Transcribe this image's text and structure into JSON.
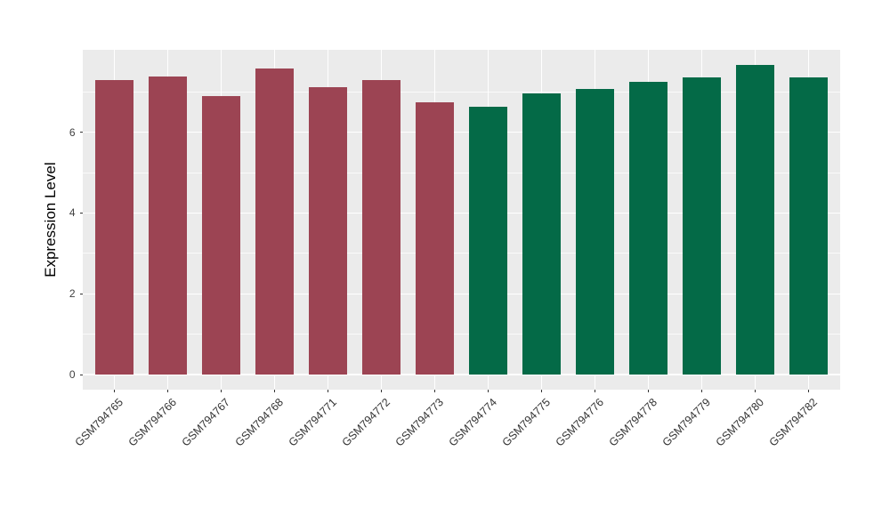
{
  "chart_data": {
    "type": "bar",
    "title": "",
    "ylabel": "Expression Level",
    "xlabel": "",
    "categories": [
      "GSM794765",
      "GSM794766",
      "GSM794767",
      "GSM794768",
      "GSM794771",
      "GSM794772",
      "GSM794773",
      "GSM794774",
      "GSM794775",
      "GSM794776",
      "GSM794778",
      "GSM794779",
      "GSM794780",
      "GSM794782"
    ],
    "values": [
      7.28,
      7.38,
      6.9,
      7.58,
      7.11,
      7.28,
      6.73,
      6.63,
      6.95,
      7.06,
      7.24,
      7.36,
      7.67,
      7.36
    ],
    "bar_colors": [
      "#9C4453",
      "#9C4453",
      "#9C4453",
      "#9C4453",
      "#9C4453",
      "#9C4453",
      "#9C4453",
      "#046A47",
      "#046A47",
      "#046A47",
      "#046A47",
      "#046A47",
      "#046A47",
      "#046A47"
    ],
    "y_ticks": [
      0,
      2,
      4,
      6
    ],
    "y_minor": [
      1,
      3,
      5,
      7
    ],
    "ylim": [
      -0.38,
      8.05
    ],
    "x_tick_angle": -45,
    "legend": "none",
    "grid": "on",
    "panel_background": "#EBEBEB",
    "grid_color": "#FFFFFF",
    "tick_color": "#333333",
    "axis_text_color": "#404040",
    "axis_title_color": "#000000"
  }
}
